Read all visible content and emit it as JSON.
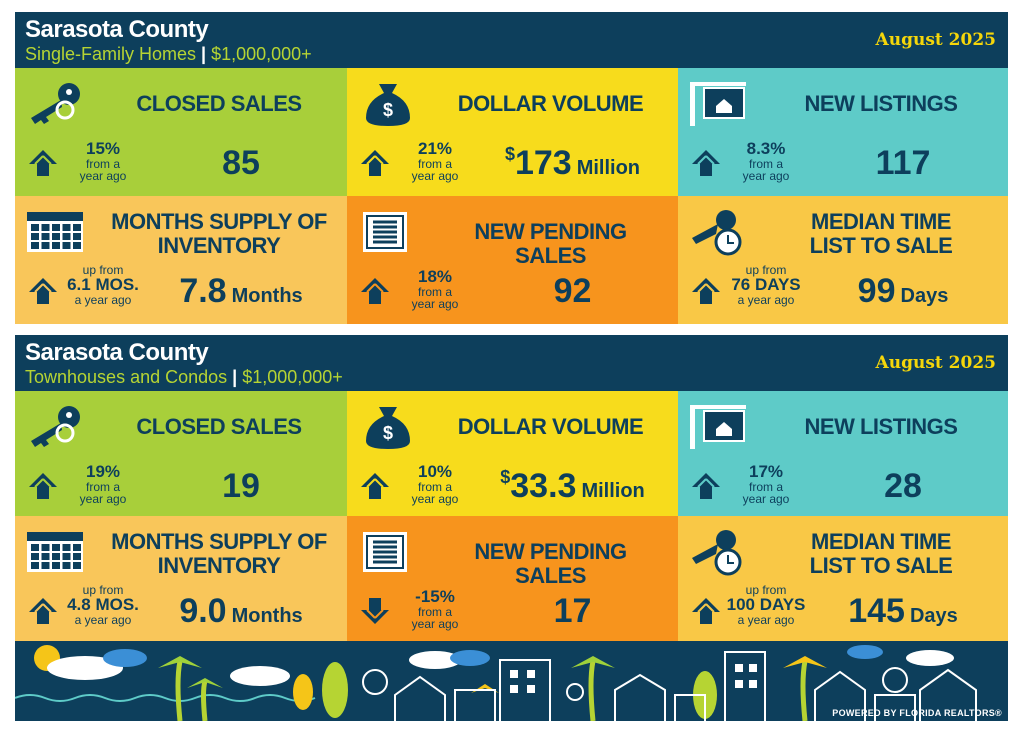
{
  "sections": [
    {
      "title": "Sarasota County",
      "subtitle": [
        "Single-Family Homes",
        "|",
        "$1,000,000+"
      ],
      "date": "August 2025",
      "tiles": [
        {
          "label": [
            "CLOSED SALES"
          ],
          "direction": "up",
          "change": {
            "main": "15%",
            "post": [
              "from a",
              "year ago"
            ]
          },
          "value": {
            "number": "85"
          }
        },
        {
          "label": [
            "DOLLAR VOLUME"
          ],
          "direction": "up",
          "change": {
            "main": "21%",
            "post": [
              "from a",
              "year ago"
            ]
          },
          "value": {
            "prefix": "$",
            "number": "173",
            "unit": "Million"
          }
        },
        {
          "label": [
            "NEW LISTINGS"
          ],
          "direction": "up",
          "change": {
            "main": "8.3%",
            "post": [
              "from a",
              "year ago"
            ]
          },
          "value": {
            "number": "117"
          }
        },
        {
          "label": [
            "MONTHS SUPPLY OF",
            "INVENTORY"
          ],
          "direction": "up",
          "change": {
            "pre": "up from",
            "main": "6.1 MOS.",
            "post": [
              "a year ago"
            ]
          },
          "value": {
            "number": "7.8",
            "unit": "Months"
          }
        },
        {
          "label": [
            "NEW PENDING SALES"
          ],
          "direction": "up",
          "change": {
            "main": "18%",
            "post": [
              "from a",
              "year ago"
            ]
          },
          "value": {
            "number": "92"
          }
        },
        {
          "label": [
            "MEDIAN TIME",
            "LIST TO SALE"
          ],
          "direction": "up",
          "change": {
            "pre": "up from",
            "main": "76 DAYS",
            "post": [
              "a year ago"
            ]
          },
          "value": {
            "number": "99",
            "unit": "Days"
          }
        }
      ]
    },
    {
      "title": "Sarasota County",
      "subtitle": [
        "Townhouses and Condos",
        "|",
        "$1,000,000+"
      ],
      "date": "August 2025",
      "tiles": [
        {
          "label": [
            "CLOSED SALES"
          ],
          "direction": "up",
          "change": {
            "main": "19%",
            "post": [
              "from a",
              "year ago"
            ]
          },
          "value": {
            "number": "19"
          }
        },
        {
          "label": [
            "DOLLAR VOLUME"
          ],
          "direction": "up",
          "change": {
            "main": "10%",
            "post": [
              "from a",
              "year ago"
            ]
          },
          "value": {
            "prefix": "$",
            "number": "33.3",
            "unit": "Million"
          }
        },
        {
          "label": [
            "NEW LISTINGS"
          ],
          "direction": "up",
          "change": {
            "main": "17%",
            "post": [
              "from a",
              "year ago"
            ]
          },
          "value": {
            "number": "28"
          }
        },
        {
          "label": [
            "MONTHS SUPPLY OF",
            "INVENTORY"
          ],
          "direction": "up",
          "change": {
            "pre": "up from",
            "main": "4.8 MOS.",
            "post": [
              "a year ago"
            ]
          },
          "value": {
            "number": "9.0",
            "unit": "Months"
          }
        },
        {
          "label": [
            "NEW PENDING SALES"
          ],
          "direction": "down",
          "change": {
            "main": "-15%",
            "post": [
              "from a",
              "year ago"
            ]
          },
          "value": {
            "number": "17"
          }
        },
        {
          "label": [
            "MEDIAN TIME",
            "LIST TO SALE"
          ],
          "direction": "up",
          "change": {
            "pre": "up from",
            "main": "100 DAYS",
            "post": [
              "a year ago"
            ]
          },
          "value": {
            "number": "145",
            "unit": "Days"
          }
        }
      ]
    }
  ],
  "footer": {
    "credit": "POWERED BY FLORIDA REALTORS®"
  }
}
